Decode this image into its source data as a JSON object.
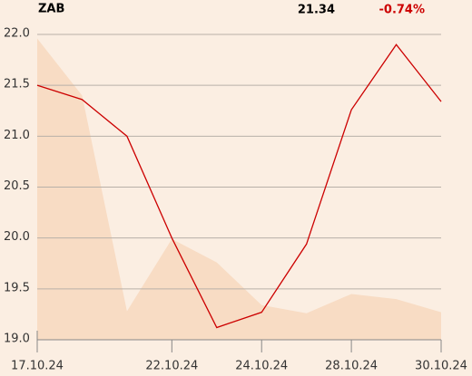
{
  "header": {
    "symbol": "ZAB",
    "price": "21.34",
    "change": "-0.74%"
  },
  "chart_data": {
    "type": "line",
    "categories": [
      "17.10.24",
      null,
      null,
      "22.10.24",
      null,
      "24.10.24",
      null,
      "28.10.24",
      null,
      "30.10.24"
    ],
    "series": [
      {
        "name": "area",
        "color": "#f8dcc4",
        "values": [
          21.96,
          21.4,
          19.28,
          19.99,
          19.76,
          19.34,
          19.26,
          19.45,
          19.4,
          19.27
        ]
      },
      {
        "name": "price",
        "color": "#cc0000",
        "values": [
          21.5,
          21.36,
          21.0,
          20.0,
          19.12,
          19.27,
          19.94,
          21.26,
          21.9,
          21.34
        ]
      }
    ],
    "ylim": [
      19.0,
      22.0
    ],
    "yticks": [
      {
        "value": 19.0,
        "label": "19.0"
      },
      19.5,
      {
        "value": 20.0,
        "label": "20.0"
      },
      20.5,
      {
        "value": 21.0,
        "label": "21.0"
      },
      21.5,
      {
        "value": 22.0,
        "label": "22.0"
      }
    ],
    "grid": true
  }
}
